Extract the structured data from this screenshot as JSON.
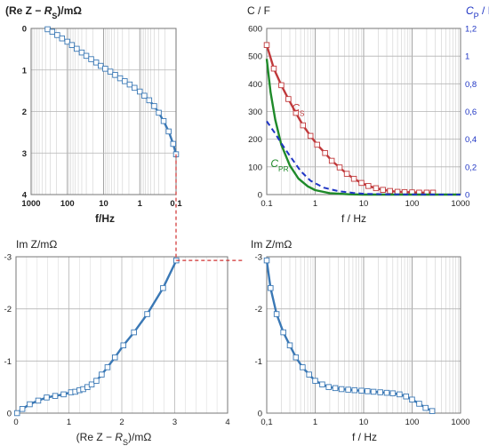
{
  "chart_data": [
    {
      "id": "tl",
      "type": "line",
      "title": "(Re Z − R_S)/mΩ",
      "xlabel": "f/Hz",
      "x_scale": "log",
      "x_reversed": true,
      "xlim": [
        1000,
        0.1
      ],
      "ylim": [
        0,
        4
      ],
      "y_inverted": true,
      "x_ticks": [
        1000,
        100,
        10,
        1,
        0.1
      ],
      "x_tick_labels": [
        "1000",
        "100",
        "10",
        "1",
        "0,1"
      ],
      "y_ticks": [
        0,
        1,
        2,
        3,
        4
      ],
      "y_tick_labels": [
        "0",
        "1",
        "2",
        "3",
        "4"
      ],
      "series": [
        {
          "color": "#3a78b5",
          "marker": "square",
          "points": [
            [
              350,
              0.02
            ],
            [
              260,
              0.08
            ],
            [
              190,
              0.16
            ],
            [
              140,
              0.24
            ],
            [
              100,
              0.32
            ],
            [
              75,
              0.4
            ],
            [
              55,
              0.49
            ],
            [
              40,
              0.58
            ],
            [
              30,
              0.66
            ],
            [
              22,
              0.74
            ],
            [
              16,
              0.82
            ],
            [
              12,
              0.9
            ],
            [
              9,
              0.97
            ],
            [
              6.5,
              1.04
            ],
            [
              4.8,
              1.12
            ],
            [
              3.5,
              1.2
            ],
            [
              2.6,
              1.27
            ],
            [
              1.9,
              1.35
            ],
            [
              1.4,
              1.43
            ],
            [
              1.0,
              1.52
            ],
            [
              0.75,
              1.62
            ],
            [
              0.55,
              1.73
            ],
            [
              0.4,
              1.87
            ],
            [
              0.3,
              2.03
            ],
            [
              0.22,
              2.23
            ],
            [
              0.16,
              2.48
            ],
            [
              0.12,
              2.78
            ],
            [
              0.1,
              3.03
            ]
          ]
        }
      ]
    },
    {
      "id": "tr",
      "type": "line",
      "title": "C / F",
      "y2_title": "C_P / F",
      "xlabel": "f / Hz",
      "x_scale": "log",
      "xlim": [
        0.1,
        1000
      ],
      "ylim": [
        0,
        600
      ],
      "y2lim": [
        0,
        1.2
      ],
      "x_ticks": [
        0.1,
        1,
        10,
        100,
        1000
      ],
      "x_tick_labels": [
        "0.1",
        "1",
        "10",
        "100",
        "1000"
      ],
      "y_ticks": [
        0,
        100,
        200,
        300,
        400,
        500,
        600
      ],
      "y_tick_labels": [
        "0",
        "100",
        "200",
        "300",
        "400",
        "500",
        "600"
      ],
      "y2_ticks": [
        0,
        0.2,
        0.4,
        0.6,
        0.8,
        1.0,
        1.2
      ],
      "y2_tick_labels": [
        "0",
        "0,2",
        "0,4",
        "0,6",
        "0,8",
        "1",
        "1,2"
      ],
      "series": [
        {
          "name": "C_S",
          "color": "#c0393b",
          "marker": "square",
          "axis": "left",
          "points": [
            [
              0.1,
              540
            ],
            [
              0.14,
              455
            ],
            [
              0.2,
              395
            ],
            [
              0.28,
              345
            ],
            [
              0.4,
              295
            ],
            [
              0.56,
              250
            ],
            [
              0.8,
              212
            ],
            [
              1.1,
              180
            ],
            [
              1.6,
              150
            ],
            [
              2.2,
              122
            ],
            [
              3.2,
              98
            ],
            [
              4.5,
              75
            ],
            [
              6.3,
              57
            ],
            [
              9,
              42
            ],
            [
              12.5,
              31
            ],
            [
              18,
              23
            ],
            [
              25,
              17
            ],
            [
              35,
              13
            ],
            [
              50,
              10
            ],
            [
              70,
              9
            ],
            [
              100,
              8
            ],
            [
              140,
              7
            ],
            [
              200,
              7
            ],
            [
              270,
              7
            ]
          ]
        },
        {
          "name": "C_PR",
          "color": "#1f8a2a",
          "axis": "left",
          "points": [
            [
              0.1,
              490
            ],
            [
              0.12,
              370
            ],
            [
              0.15,
              270
            ],
            [
              0.2,
              180
            ],
            [
              0.3,
              105
            ],
            [
              0.45,
              58
            ],
            [
              0.7,
              30
            ],
            [
              1,
              16
            ],
            [
              2,
              5
            ],
            [
              5,
              1
            ],
            [
              10,
              0
            ],
            [
              1000,
              0
            ]
          ]
        },
        {
          "name": "C_P",
          "color": "#1f35c4",
          "dashed": true,
          "axis": "right",
          "points": [
            [
              0.1,
              0.53
            ],
            [
              0.15,
              0.44
            ],
            [
              0.2,
              0.37
            ],
            [
              0.3,
              0.28
            ],
            [
              0.5,
              0.17
            ],
            [
              0.8,
              0.1
            ],
            [
              1.5,
              0.05
            ],
            [
              3,
              0.025
            ],
            [
              6,
              0.012
            ],
            [
              10,
              0.006
            ],
            [
              30,
              0.002
            ],
            [
              100,
              0.0005
            ],
            [
              1000,
              0
            ]
          ]
        }
      ],
      "labels": [
        {
          "text": "C",
          "sub": "S",
          "color": "#c0393b",
          "x": 0.33,
          "y": 300
        },
        {
          "text": "C",
          "sub": "PR",
          "color": "#1f8a2a",
          "x": 0.12,
          "y": 100
        }
      ]
    },
    {
      "id": "bl",
      "type": "line",
      "title": "Im Z/mΩ",
      "xlabel": "(Re Z − R_S)/mΩ",
      "xlim": [
        0,
        4
      ],
      "ylim": [
        0,
        -3
      ],
      "x_ticks": [
        0,
        1,
        2,
        3,
        4
      ],
      "x_tick_labels": [
        "0",
        "1",
        "2",
        "3",
        "4"
      ],
      "y_ticks": [
        0,
        -1,
        -2,
        -3
      ],
      "y_tick_labels": [
        "0",
        "-1",
        "-2",
        "-3"
      ],
      "series": [
        {
          "color": "#3a78b5",
          "marker": "square",
          "points": [
            [
              0.02,
              0.0
            ],
            [
              0.12,
              -0.08
            ],
            [
              0.26,
              -0.17
            ],
            [
              0.42,
              -0.24
            ],
            [
              0.58,
              -0.3
            ],
            [
              0.74,
              -0.33
            ],
            [
              0.9,
              -0.36
            ],
            [
              1.04,
              -0.4
            ],
            [
              1.12,
              -0.41
            ],
            [
              1.2,
              -0.44
            ],
            [
              1.27,
              -0.46
            ],
            [
              1.35,
              -0.5
            ],
            [
              1.43,
              -0.55
            ],
            [
              1.52,
              -0.62
            ],
            [
              1.62,
              -0.74
            ],
            [
              1.73,
              -0.88
            ],
            [
              1.87,
              -1.07
            ],
            [
              2.03,
              -1.3
            ],
            [
              2.23,
              -1.55
            ],
            [
              2.48,
              -1.9
            ],
            [
              2.78,
              -2.4
            ],
            [
              3.03,
              -2.93
            ]
          ]
        }
      ]
    },
    {
      "id": "br",
      "type": "line",
      "title": "Im Z/mΩ",
      "xlabel": "f / Hz",
      "x_scale": "log",
      "xlim": [
        0.1,
        1000
      ],
      "ylim": [
        0,
        -3
      ],
      "x_ticks": [
        0.1,
        1,
        10,
        100,
        1000
      ],
      "x_tick_labels": [
        "0,1",
        "1",
        "10",
        "100",
        "1000"
      ],
      "y_ticks": [
        0,
        -1,
        -2,
        -3
      ],
      "y_tick_labels": [
        "0",
        "-1",
        "-2",
        "-3"
      ],
      "series": [
        {
          "color": "#3a78b5",
          "marker": "square",
          "points": [
            [
              0.1,
              -2.93
            ],
            [
              0.12,
              -2.4
            ],
            [
              0.16,
              -1.9
            ],
            [
              0.22,
              -1.55
            ],
            [
              0.3,
              -1.3
            ],
            [
              0.4,
              -1.07
            ],
            [
              0.55,
              -0.88
            ],
            [
              0.75,
              -0.74
            ],
            [
              1.0,
              -0.62
            ],
            [
              1.4,
              -0.55
            ],
            [
              1.9,
              -0.5
            ],
            [
              2.6,
              -0.48
            ],
            [
              3.5,
              -0.46
            ],
            [
              4.8,
              -0.45
            ],
            [
              6.5,
              -0.44
            ],
            [
              9,
              -0.43
            ],
            [
              12,
              -0.42
            ],
            [
              16,
              -0.41
            ],
            [
              22,
              -0.4
            ],
            [
              30,
              -0.39
            ],
            [
              40,
              -0.38
            ],
            [
              55,
              -0.36
            ],
            [
              75,
              -0.32
            ],
            [
              100,
              -0.26
            ],
            [
              140,
              -0.18
            ],
            [
              190,
              -0.1
            ],
            [
              260,
              -0.04
            ]
          ]
        }
      ]
    }
  ]
}
